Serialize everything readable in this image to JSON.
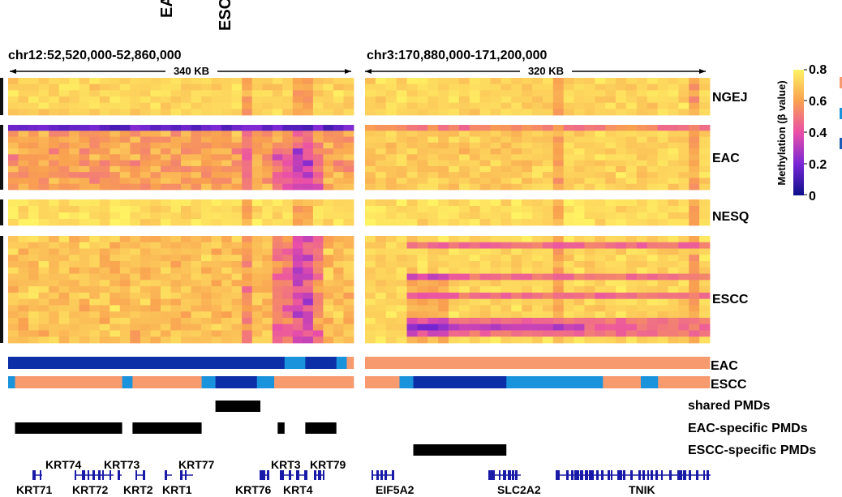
{
  "chart_data": {
    "type": "heatmap",
    "top_labels": [
      "EAC",
      "ESCC"
    ],
    "regions": [
      {
        "id": "left",
        "coords": "chr12:52,520,000-52,860,000",
        "span": "340 KB",
        "n_cols": 34
      },
      {
        "id": "right",
        "coords": "chr3:170,880,000-171,200,000",
        "span": "320 KB",
        "n_cols": 33
      }
    ],
    "groups": [
      {
        "name": "NGEJ",
        "rows": 6
      },
      {
        "name": "EAC",
        "rows": 11
      },
      {
        "name": "NESQ",
        "rows": 4
      },
      {
        "name": "ESCC",
        "rows": 17
      }
    ],
    "colorbar": {
      "title": "Methylation (β value)",
      "ticks": [
        "0.8",
        "0.6",
        "0.4",
        "0.2",
        "0"
      ],
      "range": [
        0,
        0.8
      ],
      "colors": [
        "#0b0f8a",
        "#7a27d6",
        "#ea4fa8",
        "#f9a050",
        "#fff263"
      ]
    },
    "pmd_tracks": {
      "legend_colors": [
        "#f79a6e",
        "#1a93dd",
        "#1a5bb8"
      ],
      "EAC": {
        "left": [
          {
            "from": 0.0,
            "to": 0.8,
            "c": "#0c2ea6"
          },
          {
            "from": 0.8,
            "to": 0.86,
            "c": "#1a93dd"
          },
          {
            "from": 0.86,
            "to": 0.95,
            "c": "#0c2ea6"
          },
          {
            "from": 0.95,
            "to": 0.98,
            "c": "#1a93dd"
          },
          {
            "from": 0.98,
            "to": 1.0,
            "c": "#f79a6e"
          }
        ],
        "right": [
          {
            "from": 0.0,
            "to": 1.0,
            "c": "#f79a6e"
          }
        ]
      },
      "ESCC": {
        "left": [
          {
            "from": 0.0,
            "to": 0.02,
            "c": "#1a93dd"
          },
          {
            "from": 0.02,
            "to": 0.33,
            "c": "#f79a6e"
          },
          {
            "from": 0.33,
            "to": 0.36,
            "c": "#1a93dd"
          },
          {
            "from": 0.36,
            "to": 0.56,
            "c": "#f79a6e"
          },
          {
            "from": 0.56,
            "to": 0.6,
            "c": "#1a93dd"
          },
          {
            "from": 0.6,
            "to": 0.72,
            "c": "#0c2ea6"
          },
          {
            "from": 0.72,
            "to": 0.77,
            "c": "#1a93dd"
          },
          {
            "from": 0.77,
            "to": 1.0,
            "c": "#f79a6e"
          }
        ],
        "right": [
          {
            "from": 0.0,
            "to": 0.1,
            "c": "#f79a6e"
          },
          {
            "from": 0.1,
            "to": 0.14,
            "c": "#1a93dd"
          },
          {
            "from": 0.14,
            "to": 0.41,
            "c": "#0c2ea6"
          },
          {
            "from": 0.41,
            "to": 0.69,
            "c": "#1a93dd"
          },
          {
            "from": 0.69,
            "to": 0.8,
            "c": "#f79a6e"
          },
          {
            "from": 0.8,
            "to": 0.85,
            "c": "#1a93dd"
          },
          {
            "from": 0.85,
            "to": 1.0,
            "c": "#f79a6e"
          }
        ]
      }
    },
    "pmd_bars": [
      {
        "name": "shared PMDs",
        "left": [
          [
            0.6,
            0.73
          ]
        ],
        "right": []
      },
      {
        "name": "EAC-specific PMDs",
        "left": [
          [
            0.02,
            0.33
          ],
          [
            0.36,
            0.56
          ],
          [
            0.78,
            0.8
          ],
          [
            0.86,
            0.95
          ]
        ],
        "right": []
      },
      {
        "name": "ESCC-specific PMDs",
        "left": [],
        "right": [
          [
            0.14,
            0.41
          ]
        ]
      }
    ],
    "genes": {
      "left_top": [
        "KRT74",
        "KRT73",
        "KRT77",
        "KRT3",
        "KRT79"
      ],
      "left_bottom": [
        "KRT71",
        "KRT72",
        "KRT2",
        "KRT1",
        "KRT76",
        "KRT4"
      ],
      "right_bottom": [
        "EIF5A2",
        "SLC2A2",
        "TNIK"
      ]
    }
  }
}
